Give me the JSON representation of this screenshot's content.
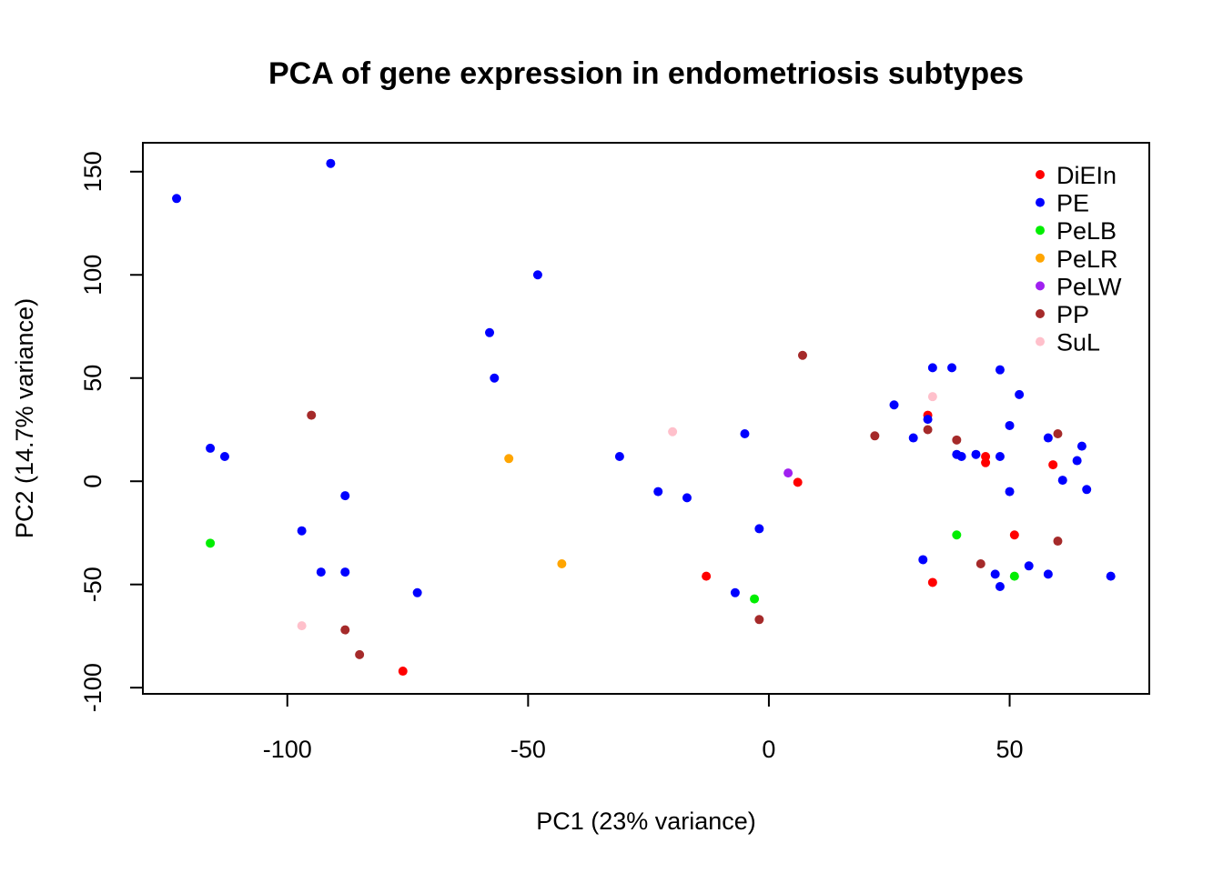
{
  "chart_data": {
    "type": "scatter",
    "title": "PCA of gene expression in endometriosis subtypes",
    "xlabel": "PC1 (23% variance)",
    "ylabel": "PC2 (14.7% variance)",
    "xlim": [
      -130,
      79
    ],
    "ylim": [
      -103,
      164
    ],
    "xticks": [
      -100,
      -50,
      0,
      50
    ],
    "yticks": [
      -100,
      -50,
      0,
      50,
      100,
      150
    ],
    "grid": false,
    "legend_position": "top-right",
    "series": [
      {
        "name": "DiEIn",
        "color": "#ff0000",
        "points": [
          [
            -76,
            -92
          ],
          [
            -13,
            -46
          ],
          [
            6,
            -0.5
          ],
          [
            33,
            32
          ],
          [
            34,
            -49
          ],
          [
            45,
            12
          ],
          [
            45,
            9
          ],
          [
            51,
            -26
          ],
          [
            59,
            8
          ]
        ]
      },
      {
        "name": "PE",
        "color": "#0000ff",
        "points": [
          [
            -123,
            137
          ],
          [
            -116,
            16
          ],
          [
            -113,
            12
          ],
          [
            -97,
            -24
          ],
          [
            -93,
            -44
          ],
          [
            -91,
            154
          ],
          [
            -88,
            -44
          ],
          [
            -88,
            -7
          ],
          [
            -73,
            -54
          ],
          [
            -58,
            72
          ],
          [
            -57,
            50
          ],
          [
            -48,
            100
          ],
          [
            -31,
            12
          ],
          [
            -23,
            -5
          ],
          [
            -17,
            -8
          ],
          [
            -7,
            -54
          ],
          [
            -5,
            23
          ],
          [
            -2,
            -23
          ],
          [
            26,
            37
          ],
          [
            30,
            21
          ],
          [
            32,
            -38
          ],
          [
            33,
            30
          ],
          [
            34,
            55
          ],
          [
            38,
            55
          ],
          [
            39,
            13
          ],
          [
            40,
            12
          ],
          [
            43,
            13
          ],
          [
            47,
            -45
          ],
          [
            48,
            -51
          ],
          [
            48,
            12
          ],
          [
            48,
            54
          ],
          [
            50,
            -5
          ],
          [
            50,
            27
          ],
          [
            52,
            42
          ],
          [
            54,
            -41
          ],
          [
            58,
            -45
          ],
          [
            58,
            21
          ],
          [
            61,
            0.5
          ],
          [
            64,
            10
          ],
          [
            65,
            17
          ],
          [
            66,
            -4
          ],
          [
            71,
            -46
          ]
        ]
      },
      {
        "name": "PeLB",
        "color": "#00ee00",
        "points": [
          [
            -116,
            -30
          ],
          [
            -3,
            -57
          ],
          [
            39,
            -26
          ],
          [
            51,
            -46
          ]
        ]
      },
      {
        "name": "PeLR",
        "color": "#ffa500",
        "points": [
          [
            -54,
            11
          ],
          [
            -43,
            -40
          ]
        ]
      },
      {
        "name": "PeLW",
        "color": "#a020f0",
        "points": [
          [
            4,
            4
          ]
        ]
      },
      {
        "name": "PP",
        "color": "#a52a2a",
        "points": [
          [
            -95,
            32
          ],
          [
            -88,
            -72
          ],
          [
            -85,
            -84
          ],
          [
            -2,
            -67
          ],
          [
            7,
            61
          ],
          [
            22,
            22
          ],
          [
            33,
            25
          ],
          [
            39,
            20
          ],
          [
            44,
            -40
          ],
          [
            60,
            23
          ],
          [
            60,
            -29
          ]
        ]
      },
      {
        "name": "SuL",
        "color": "#ffc0cb",
        "points": [
          [
            -97,
            -70
          ],
          [
            -20,
            24
          ],
          [
            34,
            41
          ]
        ]
      }
    ]
  }
}
